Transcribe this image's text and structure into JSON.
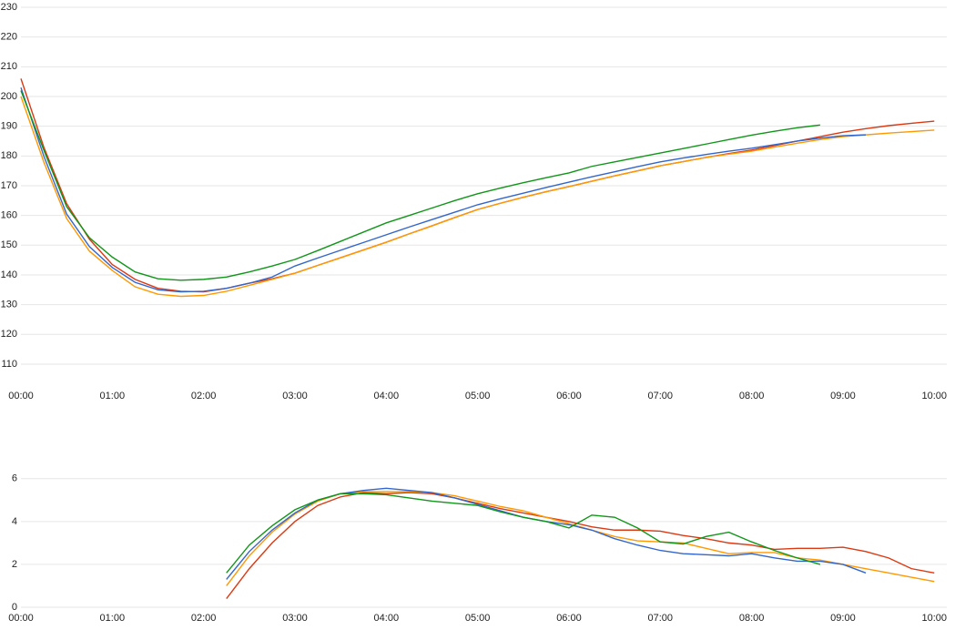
{
  "chart_data": [
    {
      "type": "line",
      "x": [
        0,
        15,
        30,
        45,
        60,
        75,
        90,
        105,
        120,
        135,
        150,
        165,
        180,
        195,
        210,
        225,
        240,
        255,
        270,
        285,
        300,
        315,
        330,
        345,
        360,
        375,
        390,
        405,
        420,
        435,
        450,
        465,
        480,
        495,
        510,
        525,
        540,
        555,
        570,
        585,
        600
      ],
      "xlim": [
        0,
        610
      ],
      "xticks": [
        {
          "value": 0,
          "label": "00:00"
        },
        {
          "value": 60,
          "label": "01:00"
        },
        {
          "value": 120,
          "label": "02:00"
        },
        {
          "value": 180,
          "label": "03:00"
        },
        {
          "value": 240,
          "label": "04:00"
        },
        {
          "value": 300,
          "label": "05:00"
        },
        {
          "value": 360,
          "label": "06:00"
        },
        {
          "value": 420,
          "label": "07:00"
        },
        {
          "value": 480,
          "label": "08:00"
        },
        {
          "value": 540,
          "label": "09:00"
        },
        {
          "value": 600,
          "label": "10:00"
        }
      ],
      "ylim": [
        105,
        230
      ],
      "yticks": [
        110,
        120,
        130,
        140,
        150,
        160,
        170,
        180,
        190,
        200,
        210,
        220,
        230
      ],
      "grid": true,
      "series": [
        {
          "color": "#dc3912",
          "values": [
            206,
            183,
            164,
            152,
            143.5,
            138.5,
            135.5,
            134.5,
            134.3,
            135.5,
            137.2,
            138.7,
            140.6,
            143.2,
            145.8,
            148.4,
            151,
            153.8,
            156.5,
            159.3,
            162,
            164.1,
            166.1,
            168,
            169.7,
            171.5,
            173.3,
            175,
            176.7,
            178.1,
            179.5,
            180.8,
            182,
            183.5,
            185,
            186.5,
            188,
            189.2,
            190.2,
            191,
            191.7
          ]
        },
        {
          "color": "#ff9900",
          "values": [
            200,
            178,
            159,
            148,
            141.5,
            136,
            133.5,
            132.8,
            133.1,
            134.5,
            136.5,
            138.5,
            140.6,
            143.2,
            145.8,
            148.4,
            151,
            153.8,
            156.5,
            159.3,
            162,
            164.1,
            166.1,
            168,
            169.7,
            171.5,
            173.3,
            175,
            176.7,
            178.1,
            179.5,
            180.6,
            181.6,
            183,
            184.3,
            185.5,
            186.5,
            187.1,
            187.7,
            188.2,
            188.7
          ]
        },
        {
          "color": "#3366cc",
          "values": [
            203,
            180,
            160.5,
            149.5,
            142.5,
            137.5,
            135,
            134.3,
            134.5,
            135.5,
            137.2,
            139.3,
            143,
            145.7,
            148.3,
            150.9,
            153.5,
            156.1,
            158.6,
            161.1,
            163.6,
            165.6,
            167.5,
            169.4,
            171.2,
            173,
            174.7,
            176.4,
            178,
            179.3,
            180.5,
            181.6,
            182.6,
            183.8,
            185,
            186,
            186.8,
            187.1,
            null,
            null,
            null
          ]
        },
        {
          "color": "#109618",
          "values": [
            202,
            182,
            163,
            152.5,
            146,
            141,
            138.7,
            138.2,
            138.5,
            139.3,
            141,
            143,
            145.2,
            148.2,
            151.3,
            154.4,
            157.5,
            160,
            162.5,
            165,
            167.3,
            169.2,
            171,
            172.7,
            174.3,
            176.5,
            178,
            179.5,
            181,
            182.5,
            184,
            185.5,
            187,
            188.3,
            189.5,
            190.4,
            null,
            null,
            null,
            null,
            null
          ]
        }
      ]
    },
    {
      "type": "line",
      "x": [
        0,
        15,
        30,
        45,
        60,
        75,
        90,
        105,
        120,
        135,
        150,
        165,
        180,
        195,
        210,
        225,
        240,
        255,
        270,
        285,
        300,
        315,
        330,
        345,
        360,
        375,
        390,
        405,
        420,
        435,
        450,
        465,
        480,
        495,
        510,
        525,
        540,
        555,
        570,
        585,
        600
      ],
      "xlim": [
        0,
        610
      ],
      "xticks": [
        {
          "value": 0,
          "label": "00:00"
        },
        {
          "value": 60,
          "label": "01:00"
        },
        {
          "value": 120,
          "label": "02:00"
        },
        {
          "value": 180,
          "label": "03:00"
        },
        {
          "value": 240,
          "label": "04:00"
        },
        {
          "value": 300,
          "label": "05:00"
        },
        {
          "value": 360,
          "label": "06:00"
        },
        {
          "value": 420,
          "label": "07:00"
        },
        {
          "value": 480,
          "label": "08:00"
        },
        {
          "value": 540,
          "label": "09:00"
        },
        {
          "value": 600,
          "label": "10:00"
        }
      ],
      "ylim": [
        0,
        6.5
      ],
      "yticks": [
        0,
        2,
        4,
        6
      ],
      "grid": true,
      "series": [
        {
          "color": "#dc3912",
          "values": [
            null,
            null,
            null,
            null,
            null,
            null,
            null,
            null,
            null,
            0.4,
            1.8,
            3.0,
            4.0,
            4.75,
            5.15,
            5.35,
            5.3,
            5.35,
            5.3,
            5.1,
            4.85,
            4.6,
            4.4,
            4.2,
            4.0,
            3.75,
            3.6,
            3.6,
            3.55,
            3.35,
            3.2,
            3.0,
            2.9,
            2.7,
            2.75,
            2.75,
            2.8,
            2.6,
            2.3,
            1.8,
            1.6
          ]
        },
        {
          "color": "#ff9900",
          "values": [
            null,
            null,
            null,
            null,
            null,
            null,
            null,
            null,
            null,
            1.0,
            2.4,
            3.5,
            4.35,
            4.95,
            5.3,
            5.4,
            5.4,
            5.4,
            5.35,
            5.2,
            4.95,
            4.7,
            4.5,
            4.2,
            3.9,
            3.6,
            3.3,
            3.1,
            3.05,
            3.0,
            2.75,
            2.5,
            2.55,
            2.55,
            2.3,
            2.2,
            2.0,
            1.8,
            1.6,
            1.4,
            1.2
          ]
        },
        {
          "color": "#3366cc",
          "values": [
            null,
            null,
            null,
            null,
            null,
            null,
            null,
            null,
            null,
            1.3,
            2.6,
            3.6,
            4.4,
            5.0,
            5.3,
            5.45,
            5.55,
            5.45,
            5.35,
            5.1,
            4.8,
            4.5,
            4.2,
            4.0,
            3.85,
            3.6,
            3.2,
            2.9,
            2.65,
            2.5,
            2.45,
            2.4,
            2.5,
            2.3,
            2.15,
            2.15,
            2.0,
            1.6,
            null,
            null,
            null
          ]
        },
        {
          "color": "#109618",
          "values": [
            null,
            null,
            null,
            null,
            null,
            null,
            null,
            null,
            null,
            1.6,
            2.9,
            3.8,
            4.55,
            5.0,
            5.3,
            5.3,
            5.25,
            5.1,
            4.95,
            4.85,
            4.75,
            4.45,
            4.2,
            4.0,
            3.7,
            4.3,
            4.2,
            3.7,
            3.05,
            2.95,
            3.3,
            3.5,
            3.05,
            2.65,
            2.3,
            2.0,
            null,
            null,
            null,
            null,
            null
          ]
        }
      ]
    }
  ]
}
